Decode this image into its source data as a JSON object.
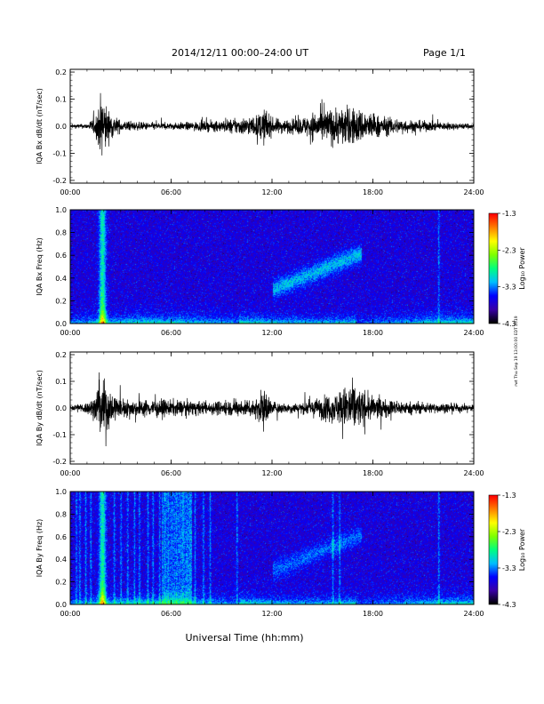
{
  "header": {
    "title": "2014/12/11   00:00–24:00 UT",
    "page": "Page 1/1"
  },
  "footer": {
    "xlabel": "Universal Time (hh:mm)",
    "side_stamp": "rwt Thu Sep 19 13:00:00 EDT 2019"
  },
  "colors": {
    "trace": "#000000",
    "background": "#ffffff"
  },
  "chart_data": [
    {
      "type": "line",
      "panel": "bx-waveform",
      "ylabel": "IQA Bx dB/dt (nT/sec)",
      "xlabel": "",
      "x_ticks": [
        "00:00",
        "06:00",
        "12:00",
        "18:00",
        "24:00"
      ],
      "y_ticks": [
        "0.2",
        "0.1",
        "0.0",
        "-0.1",
        "-0.2"
      ],
      "xlim": [
        0,
        24
      ],
      "ylim": [
        -0.21,
        0.21
      ],
      "envelope": {
        "hours": [
          0,
          1,
          1.5,
          1.9,
          2.3,
          3,
          4,
          6,
          8,
          9,
          10,
          11,
          11.6,
          12,
          13,
          14,
          14.5,
          15.5,
          16.5,
          17.5,
          18.5,
          20,
          22,
          24
        ],
        "amplitude": [
          0.012,
          0.015,
          0.06,
          0.21,
          0.09,
          0.035,
          0.025,
          0.02,
          0.03,
          0.035,
          0.05,
          0.06,
          0.11,
          0.05,
          0.04,
          0.06,
          0.09,
          0.11,
          0.12,
          0.1,
          0.06,
          0.04,
          0.025,
          0.015
        ]
      }
    },
    {
      "type": "heatmap",
      "panel": "bx-spectrogram",
      "ylabel": "IQA Bx Freq (Hz)",
      "colorbar_label": "Log₁₀ Power",
      "colorbar_ticks": [
        "-1.3",
        "-2.3",
        "-3.3",
        "-4.3"
      ],
      "x_ticks": [
        "00:00",
        "06:00",
        "12:00",
        "18:00",
        "24:00"
      ],
      "y_ticks": [
        "1.0",
        "0.8",
        "0.6",
        "0.4",
        "0.2",
        "0.0"
      ],
      "xlim": [
        0,
        24
      ],
      "ylim": [
        0,
        1.0
      ],
      "zlim": [
        -4.3,
        -1.3
      ],
      "colormap": [
        "#000000",
        "#3a00a8",
        "#0000ff",
        "#00bfff",
        "#00ff7f",
        "#7fff00",
        "#ffff00",
        "#ff8000",
        "#ff0000"
      ]
    },
    {
      "type": "line",
      "panel": "by-waveform",
      "ylabel": "IQA By dB/dt (nT/sec)",
      "xlabel": "",
      "x_ticks": [
        "00:00",
        "06:00",
        "12:00",
        "18:00",
        "24:00"
      ],
      "y_ticks": [
        "0.2",
        "0.1",
        "0.0",
        "-0.1",
        "-0.2"
      ],
      "xlim": [
        0,
        24
      ],
      "ylim": [
        -0.21,
        0.21
      ],
      "envelope": {
        "hours": [
          0,
          1,
          1.5,
          1.9,
          2.3,
          3,
          4,
          5,
          6,
          8,
          10,
          11,
          11.6,
          12,
          13,
          14,
          15,
          16,
          16.7,
          17.5,
          18.5,
          20,
          22,
          24
        ],
        "amplitude": [
          0.02,
          0.035,
          0.08,
          0.21,
          0.12,
          0.06,
          0.05,
          0.055,
          0.05,
          0.04,
          0.05,
          0.06,
          0.12,
          0.04,
          0.03,
          0.04,
          0.07,
          0.1,
          0.17,
          0.09,
          0.06,
          0.04,
          0.03,
          0.02
        ]
      }
    },
    {
      "type": "heatmap",
      "panel": "by-spectrogram",
      "ylabel": "IQA By Freq (Hz)",
      "colorbar_label": "Log₁₀ Power",
      "colorbar_ticks": [
        "-1.3",
        "-2.3",
        "-3.3",
        "-4.3"
      ],
      "x_ticks": [
        "00:00",
        "06:00",
        "12:00",
        "18:00",
        "24:00"
      ],
      "y_ticks": [
        "1.0",
        "0.8",
        "0.6",
        "0.4",
        "0.2",
        "0.0"
      ],
      "xlim": [
        0,
        24
      ],
      "ylim": [
        0,
        1.0
      ],
      "zlim": [
        -4.3,
        -1.3
      ],
      "colormap": [
        "#000000",
        "#3a00a8",
        "#0000ff",
        "#00bfff",
        "#00ff7f",
        "#7fff00",
        "#ffff00",
        "#ff8000",
        "#ff0000"
      ]
    }
  ]
}
